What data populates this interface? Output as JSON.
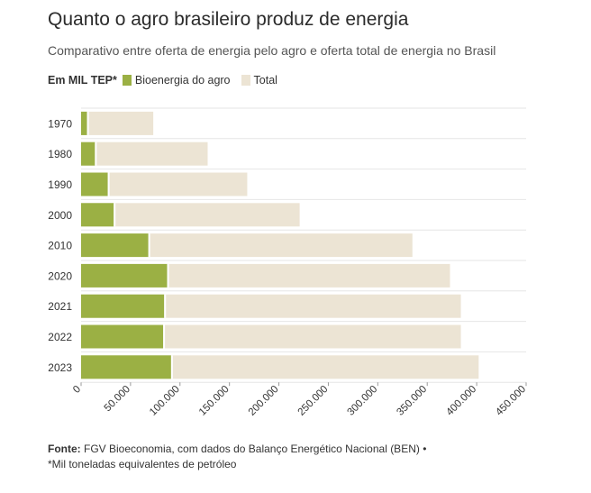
{
  "header": {
    "title": "Quanto o agro brasileiro produz de energia",
    "subtitle": "Comparativo entre oferta de energia pelo agro e oferta total de energia no Brasil"
  },
  "legend": {
    "unit": "Em MIL TEP*",
    "items": [
      {
        "label": "Bioenergia do agro",
        "color": "#9bb044"
      },
      {
        "label": "Total",
        "color": "#ece4d4"
      }
    ]
  },
  "footer": {
    "source_label": "Fonte:",
    "source_text": "FGV Bioeconomia, com dados do Balanço Energético Nacional (BEN) •",
    "note": "*Mil toneladas equivalentes de petróleo"
  },
  "chart_data": {
    "type": "bar",
    "orientation": "horizontal",
    "stacked": true,
    "categories": [
      "1970",
      "1980",
      "1990",
      "2000",
      "2010",
      "2020",
      "2021",
      "2022",
      "2023"
    ],
    "series": [
      {
        "name": "Bioenergia do agro",
        "color": "#9bb044",
        "values": [
          6000,
          14000,
          27000,
          33000,
          68000,
          87000,
          84000,
          83000,
          91000
        ]
      },
      {
        "name": "Total",
        "color": "#ece4d4",
        "values": [
          73000,
          128000,
          168000,
          221000,
          335000,
          373000,
          384000,
          384000,
          402000
        ]
      }
    ],
    "xlim": [
      0,
      450000
    ],
    "xticks": [
      0,
      50000,
      100000,
      150000,
      200000,
      250000,
      300000,
      350000,
      400000,
      450000
    ],
    "xtick_labels": [
      "0",
      "50.000",
      "100.000",
      "150.000",
      "200.000",
      "250.000",
      "300.000",
      "350.000",
      "400.000",
      "450.000"
    ],
    "grid": true
  }
}
